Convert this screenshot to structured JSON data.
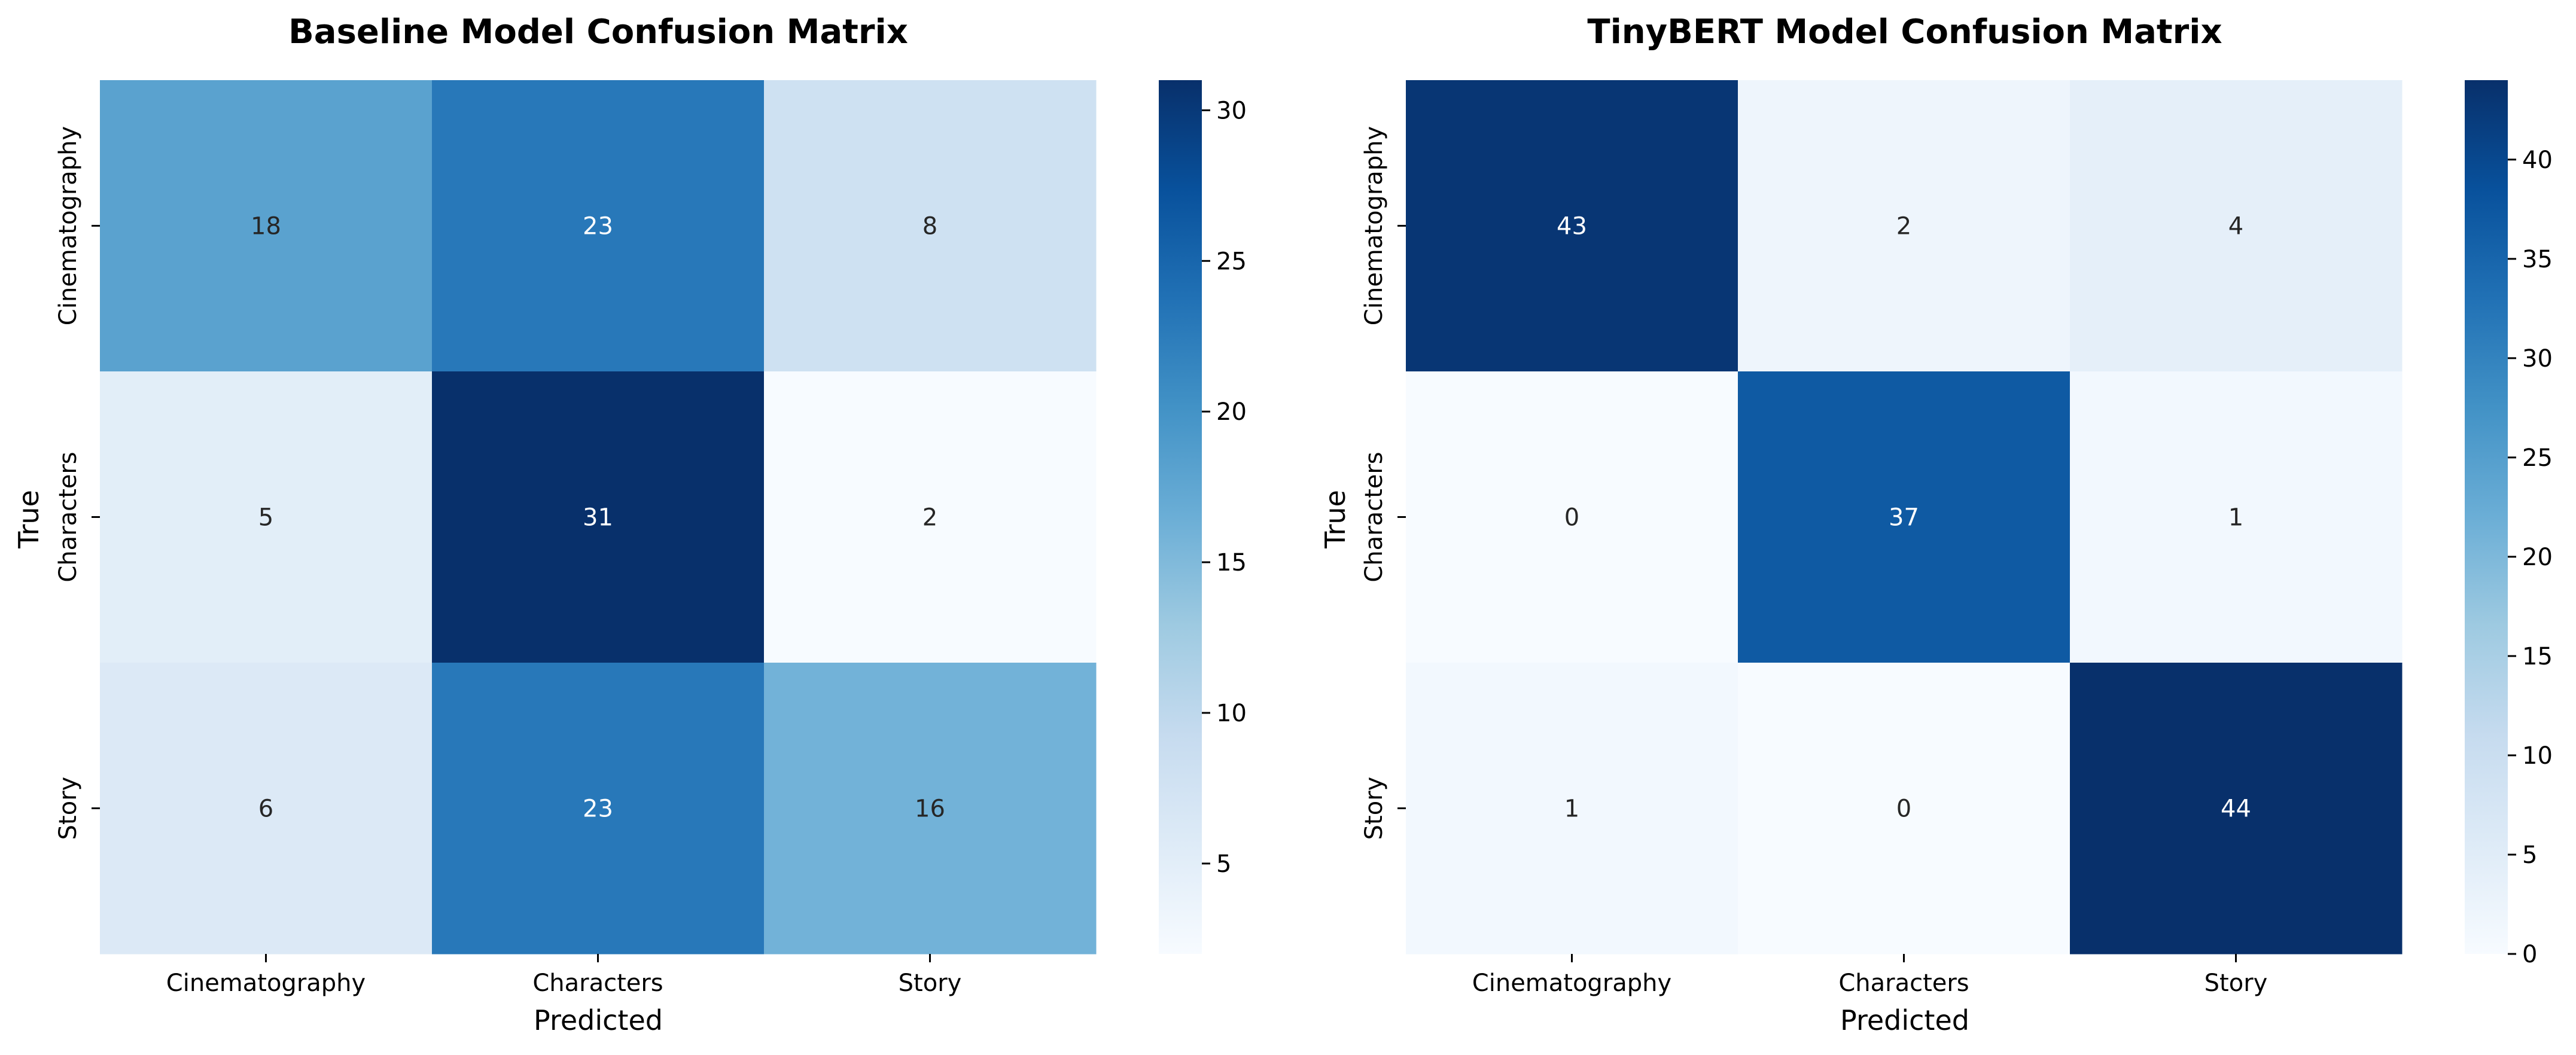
{
  "chart_data": [
    {
      "type": "heatmap",
      "title": "Baseline Model Confusion Matrix",
      "xlabel": "Predicted",
      "ylabel": "True",
      "x_categories": [
        "Cinematography",
        "Characters",
        "Story"
      ],
      "y_categories": [
        "Cinematography",
        "Characters",
        "Story"
      ],
      "matrix": [
        [
          18,
          23,
          8
        ],
        [
          5,
          31,
          2
        ],
        [
          6,
          23,
          16
        ]
      ],
      "colormap": "Blues",
      "vmin": 2,
      "vmax": 31,
      "colorbar_ticks": [
        "5",
        "10",
        "15",
        "20",
        "25",
        "30"
      ],
      "colorbar_tick_values": [
        5,
        10,
        15,
        20,
        25,
        30
      ]
    },
    {
      "type": "heatmap",
      "title": "TinyBERT Model Confusion Matrix",
      "xlabel": "Predicted",
      "ylabel": "True",
      "x_categories": [
        "Cinematography",
        "Characters",
        "Story"
      ],
      "y_categories": [
        "Cinematography",
        "Characters",
        "Story"
      ],
      "matrix": [
        [
          43,
          2,
          4
        ],
        [
          0,
          37,
          1
        ],
        [
          1,
          0,
          44
        ]
      ],
      "colormap": "Blues",
      "vmin": 0,
      "vmax": 44,
      "colorbar_ticks": [
        "0",
        "5",
        "10",
        "15",
        "20",
        "25",
        "30",
        "35",
        "40"
      ],
      "colorbar_tick_values": [
        0,
        5,
        10,
        15,
        20,
        25,
        30,
        35,
        40
      ]
    }
  ]
}
